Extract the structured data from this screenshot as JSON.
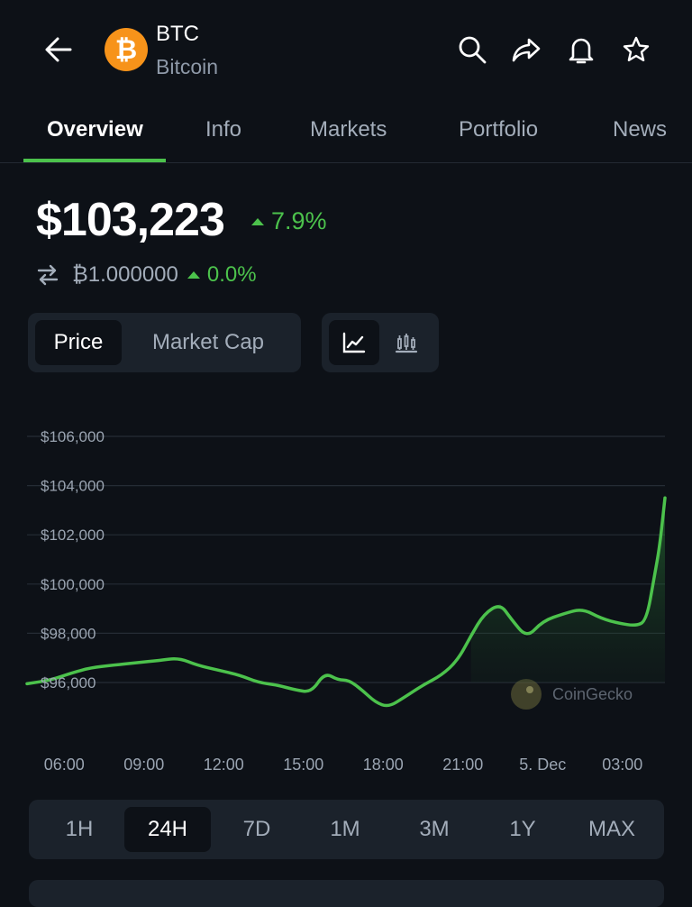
{
  "header": {
    "back_icon": "back-arrow-icon",
    "coin_logo_glyph": "₿",
    "symbol": "BTC",
    "name": "Bitcoin",
    "actions": [
      "search-icon",
      "share-icon",
      "bell-icon",
      "star-icon"
    ]
  },
  "tabs": [
    {
      "label": "Overview",
      "active": true
    },
    {
      "label": "Info",
      "active": false
    },
    {
      "label": "Markets",
      "active": false
    },
    {
      "label": "Portfolio",
      "active": false
    },
    {
      "label": "News",
      "active": false
    }
  ],
  "price": {
    "value": "$103,223",
    "change": "7.9%",
    "btc_value": "₿1.000000",
    "btc_change": "0.0%"
  },
  "chart_toggle": {
    "price_label": "Price",
    "market_cap_label": "Market Cap",
    "selected": "Price"
  },
  "chart_style_toggle": [
    "line-chart-icon",
    "candlestick-icon"
  ],
  "colors": {
    "background": "#0d1117",
    "positive": "#4cc24c",
    "btc_orange": "#f7931a",
    "panel": "#1b222b"
  },
  "watermark": "CoinGecko",
  "range_buttons": [
    "1H",
    "24H",
    "7D",
    "1M",
    "3M",
    "1Y",
    "MAX"
  ],
  "range_selected": "24H",
  "chart_data": {
    "type": "area",
    "title": "",
    "xlabel": "",
    "ylabel": "",
    "ylim": [
      95000,
      107000
    ],
    "y_ticks": [
      "$106,000",
      "$104,000",
      "$102,000",
      "$100,000",
      "$98,000",
      "$96,000"
    ],
    "y_tick_values": [
      106000,
      104000,
      102000,
      100000,
      98000,
      96000
    ],
    "x_ticks": [
      "06:00",
      "09:00",
      "12:00",
      "15:00",
      "18:00",
      "21:00",
      "5. Dec",
      "03:00"
    ],
    "x_tick_hours": [
      6,
      9,
      12,
      15,
      18,
      21,
      24,
      27
    ],
    "x_range_hours": [
      4.6,
      28.6
    ],
    "grid": true,
    "series": [
      {
        "x": [
          4.6,
          5.5,
          6.3,
          7.0,
          7.8,
          8.7,
          9.6,
          10.3,
          11.0,
          11.8,
          12.6,
          13.3,
          14.0,
          14.7,
          15.3,
          15.8,
          16.3,
          16.7,
          17.2,
          17.7,
          18.2,
          18.8,
          19.5,
          20.2,
          20.8,
          21.3,
          21.8,
          22.4,
          22.8,
          23.4,
          24.0,
          24.8,
          25.5,
          26.2,
          26.9,
          27.5,
          27.9,
          28.2,
          28.4,
          28.6
        ],
        "y": [
          95950,
          96100,
          96400,
          96600,
          96700,
          96800,
          96900,
          97000,
          96700,
          96500,
          96300,
          96000,
          95900,
          95700,
          95600,
          96400,
          96100,
          96100,
          95700,
          95200,
          95000,
          95400,
          95900,
          96300,
          96900,
          97900,
          98800,
          99200,
          98600,
          97800,
          98500,
          98800,
          99000,
          98600,
          98400,
          98300,
          98500,
          100300,
          101500,
          103500
        ]
      }
    ]
  }
}
